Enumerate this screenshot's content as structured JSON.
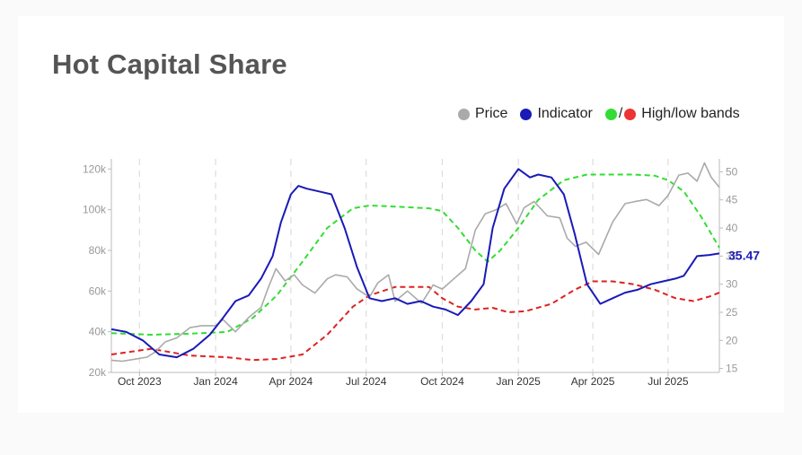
{
  "page": {
    "title": "Hot Capital Share"
  },
  "legend": {
    "price_label": "Price",
    "indicator_label": "Indicator",
    "bands_separator": "/",
    "bands_label": "High/low bands"
  },
  "colors": {
    "price": "#aaaaaa",
    "indicator": "#1a1ab8",
    "high_band": "#33dd33",
    "low_band": "#dd2222",
    "title": "#555555"
  },
  "chart_data": {
    "type": "line",
    "last_indicator_label": "35.47",
    "x_ticks": [
      "2023-10-01",
      "2024-01-01",
      "2024-04-01",
      "2024-07-01",
      "2024-10-01",
      "2025-01-01",
      "2025-04-01",
      "2025-07-01"
    ],
    "x_tick_labels": [
      "Oct 2023",
      "Jan 2024",
      "Apr 2024",
      "Jul 2024",
      "Oct 2024",
      "Jan 2025",
      "Apr 2025",
      "Jul 2025"
    ],
    "left_axis": {
      "ticks": [
        20000,
        40000,
        60000,
        80000,
        100000,
        120000
      ],
      "tick_labels": [
        "20k",
        "40k",
        "60k",
        "80k",
        "100k",
        "120k"
      ],
      "range": [
        20000,
        125000
      ]
    },
    "right_axis": {
      "ticks": [
        15,
        20,
        25,
        30,
        35,
        40,
        45,
        50
      ],
      "tick_labels": [
        "15",
        "20",
        "25",
        "30",
        "35",
        "40",
        "45",
        "50"
      ],
      "range": [
        14.3,
        52.3
      ]
    },
    "x_range": [
      "2023-08-28",
      "2025-09-01"
    ],
    "series": [
      {
        "name": "Price",
        "axis": "left",
        "color": "#aaaaaa",
        "x": [
          "2023-08-28",
          "2023-09-10",
          "2023-09-25",
          "2023-10-10",
          "2023-10-20",
          "2023-11-01",
          "2023-11-15",
          "2023-12-01",
          "2023-12-15",
          "2024-01-01",
          "2024-01-10",
          "2024-01-25",
          "2024-02-10",
          "2024-02-25",
          "2024-03-05",
          "2024-03-14",
          "2024-03-25",
          "2024-04-05",
          "2024-04-15",
          "2024-04-30",
          "2024-05-15",
          "2024-05-25",
          "2024-06-08",
          "2024-06-20",
          "2024-07-05",
          "2024-07-15",
          "2024-07-28",
          "2024-08-05",
          "2024-08-20",
          "2024-09-06",
          "2024-09-20",
          "2024-10-01",
          "2024-10-15",
          "2024-10-29",
          "2024-11-10",
          "2024-11-22",
          "2024-12-05",
          "2024-12-17",
          "2024-12-30",
          "2025-01-08",
          "2025-01-20",
          "2025-02-05",
          "2025-02-20",
          "2025-03-01",
          "2025-03-11",
          "2025-03-24",
          "2025-04-08",
          "2025-04-25",
          "2025-05-10",
          "2025-05-22",
          "2025-06-05",
          "2025-06-20",
          "2025-07-01",
          "2025-07-14",
          "2025-07-25",
          "2025-08-05",
          "2025-08-14",
          "2025-08-22",
          "2025-09-01"
        ],
        "values": [
          26000,
          25500,
          26500,
          27500,
          30000,
          35000,
          37000,
          42000,
          43000,
          43000,
          46000,
          40000,
          47000,
          52000,
          62000,
          71000,
          65000,
          68000,
          63000,
          59000,
          66000,
          68000,
          67000,
          61000,
          57000,
          64000,
          68000,
          55000,
          60000,
          54000,
          63000,
          61000,
          66000,
          71000,
          90000,
          98000,
          100000,
          103000,
          93000,
          101000,
          104000,
          97000,
          96000,
          86000,
          82000,
          84000,
          78000,
          94000,
          103000,
          104000,
          105000,
          102000,
          107000,
          117000,
          118000,
          114000,
          123000,
          116000,
          111000
        ]
      },
      {
        "name": "Indicator",
        "axis": "right",
        "color": "#1a1ab8",
        "x": [
          "2023-08-28",
          "2023-09-15",
          "2023-10-05",
          "2023-10-25",
          "2023-11-15",
          "2023-12-05",
          "2023-12-25",
          "2024-01-10",
          "2024-01-25",
          "2024-02-10",
          "2024-02-25",
          "2024-03-10",
          "2024-03-20",
          "2024-04-01",
          "2024-04-10",
          "2024-04-20",
          "2024-05-05",
          "2024-05-20",
          "2024-06-05",
          "2024-06-20",
          "2024-07-05",
          "2024-07-20",
          "2024-08-05",
          "2024-08-20",
          "2024-09-05",
          "2024-09-20",
          "2024-10-05",
          "2024-10-20",
          "2024-11-05",
          "2024-11-20",
          "2024-12-01",
          "2024-12-15",
          "2025-01-01",
          "2025-01-15",
          "2025-01-25",
          "2025-02-10",
          "2025-02-25",
          "2025-03-10",
          "2025-03-25",
          "2025-04-10",
          "2025-04-25",
          "2025-05-10",
          "2025-05-25",
          "2025-06-10",
          "2025-06-25",
          "2025-07-10",
          "2025-07-20",
          "2025-08-05",
          "2025-08-20",
          "2025-09-01"
        ],
        "values": [
          22,
          21.5,
          20,
          17.5,
          17,
          18.5,
          21,
          24,
          27,
          28,
          31,
          35,
          41,
          46,
          47.5,
          47,
          46.5,
          46,
          40,
          33,
          27.5,
          27,
          27.5,
          26.5,
          27,
          26,
          25.5,
          24.5,
          27,
          30,
          40,
          47,
          50.5,
          49,
          49.5,
          49,
          46,
          39,
          30,
          26.5,
          27.5,
          28.5,
          29,
          30,
          30.5,
          31,
          31.5,
          35,
          35.2,
          35.47
        ]
      },
      {
        "name": "High band",
        "axis": "right",
        "color": "#33dd33",
        "dashed": true,
        "x": [
          "2023-08-28",
          "2023-10-15",
          "2023-12-01",
          "2024-01-15",
          "2024-02-15",
          "2024-03-15",
          "2024-04-15",
          "2024-05-15",
          "2024-06-15",
          "2024-07-05",
          "2024-08-05",
          "2024-09-15",
          "2024-10-01",
          "2024-10-20",
          "2024-11-10",
          "2024-11-25",
          "2024-12-10",
          "2025-01-01",
          "2025-01-25",
          "2025-02-25",
          "2025-03-25",
          "2025-04-25",
          "2025-05-20",
          "2025-06-15",
          "2025-07-01",
          "2025-07-20",
          "2025-08-10",
          "2025-09-01"
        ],
        "values": [
          21.3,
          21,
          21.2,
          21.5,
          24,
          28,
          34,
          40,
          43.5,
          44,
          43.8,
          43.5,
          43,
          40,
          36,
          34,
          36,
          40,
          45,
          48.5,
          49.5,
          49.5,
          49.5,
          49.3,
          48.5,
          46.5,
          42,
          36.5
        ]
      },
      {
        "name": "Low band",
        "axis": "right",
        "color": "#dd2222",
        "dashed": true,
        "x": [
          "2023-08-28",
          "2023-10-15",
          "2023-12-01",
          "2024-01-15",
          "2024-02-15",
          "2024-03-15",
          "2024-04-15",
          "2024-05-15",
          "2024-06-15",
          "2024-07-05",
          "2024-08-05",
          "2024-09-15",
          "2024-10-01",
          "2024-10-20",
          "2024-11-10",
          "2024-12-01",
          "2024-12-20",
          "2025-01-10",
          "2025-02-10",
          "2025-03-10",
          "2025-04-01",
          "2025-04-25",
          "2025-05-20",
          "2025-06-15",
          "2025-07-10",
          "2025-08-01",
          "2025-08-20",
          "2025-09-01"
        ],
        "values": [
          17.5,
          18.5,
          17.3,
          17,
          16.5,
          16.7,
          17.5,
          21,
          26,
          28,
          29.5,
          29.5,
          27.5,
          26,
          25.5,
          25.8,
          25,
          25.2,
          26.5,
          29,
          30.5,
          30.5,
          30,
          29,
          27.5,
          27,
          27.8,
          28.5
        ]
      }
    ]
  }
}
